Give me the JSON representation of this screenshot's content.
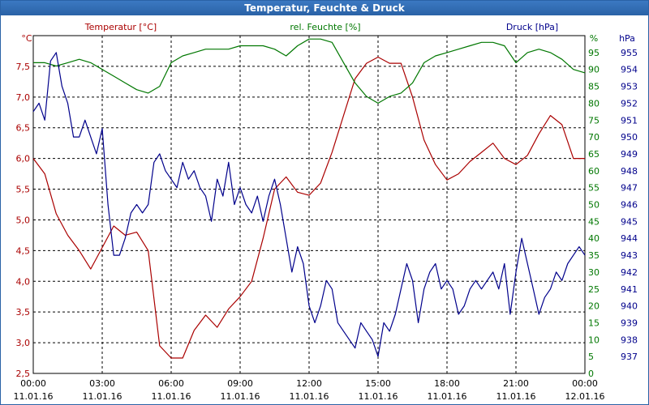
{
  "window": {
    "title": "Temperatur, Feuchte & Druck"
  },
  "chart_data": {
    "type": "line",
    "title": "Temperatur, Feuchte & Druck",
    "x_ticks": [
      {
        "time": "00:00",
        "date": "11.01.16"
      },
      {
        "time": "03:00",
        "date": "11.01.16"
      },
      {
        "time": "06:00",
        "date": "11.01.16"
      },
      {
        "time": "09:00",
        "date": "11.01.16"
      },
      {
        "time": "12:00",
        "date": "11.01.16"
      },
      {
        "time": "15:00",
        "date": "11.01.16"
      },
      {
        "time": "18:00",
        "date": "11.01.16"
      },
      {
        "time": "21:00",
        "date": "11.01.16"
      },
      {
        "time": "00:00",
        "date": "12.01.16"
      }
    ],
    "axes": {
      "temperature": {
        "label": "Temperatur [°C]",
        "unit": "°C",
        "range": [
          2.5,
          8.0
        ],
        "ticks": [
          "2,5",
          "3,0",
          "3,5",
          "4,0",
          "4,5",
          "5,0",
          "5,5",
          "6,0",
          "6,5",
          "7,0",
          "7,5"
        ],
        "color": "#aa0000"
      },
      "humidity": {
        "label": "rel. Feuchte [%]",
        "unit": "%",
        "range": [
          0,
          100
        ],
        "ticks": [
          "0",
          "5",
          "10",
          "15",
          "20",
          "25",
          "30",
          "35",
          "40",
          "45",
          "50",
          "55",
          "60",
          "65",
          "70",
          "75",
          "80",
          "85",
          "90",
          "95"
        ],
        "color": "#007700"
      },
      "pressure": {
        "label": "Druck [hPa]",
        "unit": "hPa",
        "range": [
          936,
          956
        ],
        "ticks": [
          "937",
          "938",
          "939",
          "940",
          "941",
          "942",
          "943",
          "944",
          "945",
          "946",
          "947",
          "948",
          "949",
          "950",
          "951",
          "952",
          "953",
          "954",
          "955"
        ],
        "color": "#00008b"
      }
    },
    "grid": true,
    "series": [
      {
        "name": "Temperatur [°C]",
        "color": "#aa0000",
        "x_hours": [
          0,
          0.5,
          1,
          1.5,
          2,
          2.5,
          3,
          3.5,
          4,
          4.5,
          5,
          5.5,
          6,
          6.5,
          7,
          7.5,
          8,
          8.5,
          9,
          9.5,
          10,
          10.5,
          11,
          11.5,
          12,
          12.5,
          13,
          13.5,
          14,
          14.5,
          15,
          15.5,
          16,
          16.5,
          17,
          17.5,
          18,
          18.5,
          19,
          19.5,
          20,
          20.5,
          21,
          21.5,
          22,
          22.5,
          23,
          23.5,
          24
        ],
        "values": [
          6.0,
          5.75,
          5.1,
          4.75,
          4.5,
          4.2,
          4.55,
          4.9,
          4.75,
          4.8,
          4.5,
          2.95,
          2.75,
          2.75,
          3.2,
          3.45,
          3.25,
          3.55,
          3.75,
          4.0,
          4.7,
          5.5,
          5.7,
          5.45,
          5.4,
          5.6,
          6.1,
          6.7,
          7.3,
          7.55,
          7.65,
          7.55,
          7.55,
          7.0,
          6.3,
          5.9,
          5.65,
          5.75,
          5.95,
          6.1,
          6.25,
          6.0,
          5.9,
          6.05,
          6.4,
          6.7,
          6.55,
          6.0,
          6.0
        ],
        "y_axis": "temperature"
      },
      {
        "name": "rel. Feuchte [%]",
        "color": "#007700",
        "x_hours": [
          0,
          0.5,
          1,
          1.5,
          2,
          2.5,
          3,
          3.5,
          4,
          4.5,
          5,
          5.5,
          6,
          6.5,
          7,
          7.5,
          8,
          8.5,
          9,
          9.5,
          10,
          10.5,
          11,
          11.5,
          12,
          12.5,
          13,
          13.5,
          14,
          14.5,
          15,
          15.5,
          16,
          16.5,
          17,
          17.5,
          18,
          18.5,
          19,
          19.5,
          20,
          20.5,
          21,
          21.5,
          22,
          22.5,
          23,
          23.5,
          24
        ],
        "values": [
          92,
          92,
          91,
          92,
          93,
          92,
          90,
          88,
          86,
          84,
          83,
          85,
          92,
          94,
          95,
          96,
          96,
          96,
          97,
          97,
          97,
          96,
          94,
          97,
          99,
          99,
          98,
          92,
          86,
          82,
          80,
          82,
          83,
          86,
          92,
          94,
          95,
          96,
          97,
          98,
          98,
          97,
          92,
          95,
          96,
          95,
          93,
          90,
          89
        ],
        "y_axis": "humidity"
      },
      {
        "name": "Druck [hPa]",
        "color": "#00008b",
        "x_hours": [
          0,
          0.25,
          0.5,
          0.75,
          1,
          1.25,
          1.5,
          1.75,
          2,
          2.25,
          2.5,
          2.75,
          3,
          3.25,
          3.5,
          3.75,
          4,
          4.25,
          4.5,
          4.75,
          5,
          5.25,
          5.5,
          5.75,
          6,
          6.25,
          6.5,
          6.75,
          7,
          7.25,
          7.5,
          7.75,
          8,
          8.25,
          8.5,
          8.75,
          9,
          9.25,
          9.5,
          9.75,
          10,
          10.25,
          10.5,
          10.75,
          11,
          11.25,
          11.5,
          11.75,
          12,
          12.25,
          12.5,
          12.75,
          13,
          13.25,
          13.5,
          13.75,
          14,
          14.25,
          14.5,
          14.75,
          15,
          15.25,
          15.5,
          15.75,
          16,
          16.25,
          16.5,
          16.75,
          17,
          17.25,
          17.5,
          17.75,
          18,
          18.25,
          18.5,
          18.75,
          19,
          19.25,
          19.5,
          19.75,
          20,
          20.25,
          20.5,
          20.75,
          21,
          21.25,
          21.5,
          21.75,
          22,
          22.25,
          22.5,
          22.75,
          23,
          23.25,
          23.5,
          23.75,
          24
        ],
        "values": [
          951.5,
          952.0,
          951.0,
          954.5,
          955.0,
          953.0,
          952.0,
          950.0,
          950.0,
          951.0,
          950.0,
          949.0,
          950.5,
          946.0,
          943.0,
          943.0,
          944.0,
          945.5,
          946.0,
          945.5,
          946.0,
          948.5,
          949.0,
          948.0,
          947.5,
          947.0,
          948.5,
          947.5,
          948.0,
          947.0,
          946.5,
          945.0,
          947.5,
          946.5,
          948.5,
          946.0,
          947.0,
          946.0,
          945.5,
          946.5,
          945.0,
          946.5,
          947.5,
          946.0,
          944.0,
          942.0,
          943.5,
          942.5,
          940.0,
          939.0,
          940.0,
          941.5,
          941.0,
          939.0,
          938.5,
          938.0,
          937.5,
          939.0,
          938.5,
          938.0,
          937.0,
          939.0,
          938.5,
          939.5,
          941.0,
          942.5,
          941.5,
          939.0,
          941.0,
          942.0,
          942.5,
          941.0,
          941.5,
          941.0,
          939.5,
          940.0,
          941.0,
          941.5,
          941.0,
          941.5,
          942.0,
          941.0,
          942.5,
          939.5,
          942.0,
          944.0,
          942.5,
          941.0,
          939.5,
          940.5,
          941.0,
          942.0,
          941.5,
          942.5,
          943.0,
          943.5,
          943.0
        ],
        "y_axis": "pressure"
      }
    ]
  }
}
